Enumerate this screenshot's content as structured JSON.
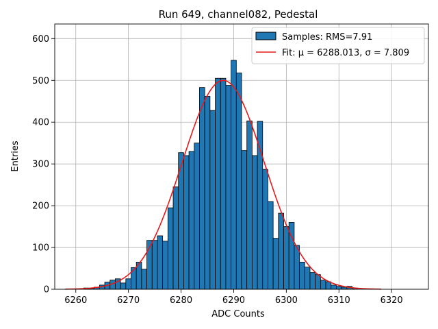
{
  "chart_data": {
    "type": "bar",
    "title": "Run 649, channel082, Pedestal",
    "xlabel": "ADC Counts",
    "ylabel": "Entries",
    "xlim": [
      6256,
      6327
    ],
    "ylim": [
      0,
      635
    ],
    "xticks": [
      6260,
      6270,
      6280,
      6290,
      6300,
      6310,
      6320
    ],
    "yticks": [
      0,
      100,
      200,
      300,
      400,
      500,
      600
    ],
    "grid": true,
    "legend_position": "top-right",
    "bin_width": 1,
    "bar_color": "#1f77b4",
    "fit_color": "#e41a1c",
    "series": [
      {
        "name": "Samples: RMS=7.91",
        "kind": "histogram",
        "x": [
          6262,
          6263,
          6264,
          6265,
          6266,
          6267,
          6268,
          6269,
          6270,
          6271,
          6272,
          6273,
          6274,
          6275,
          6276,
          6277,
          6278,
          6279,
          6280,
          6281,
          6282,
          6283,
          6284,
          6285,
          6286,
          6287,
          6288,
          6289,
          6290,
          6291,
          6292,
          6293,
          6294,
          6295,
          6296,
          6297,
          6298,
          6299,
          6300,
          6301,
          6302,
          6303,
          6304,
          6305,
          6306,
          6307,
          6308,
          6309,
          6310,
          6311,
          6312,
          6313
        ],
        "values": [
          3,
          2,
          5,
          10,
          17,
          22,
          25,
          15,
          25,
          52,
          65,
          48,
          117,
          117,
          128,
          115,
          195,
          245,
          327,
          320,
          330,
          350,
          483,
          462,
          428,
          505,
          505,
          488,
          548,
          518,
          332,
          403,
          320,
          402,
          287,
          210,
          122,
          182,
          150,
          160,
          105,
          65,
          53,
          40,
          35,
          22,
          18,
          10,
          7,
          5,
          7,
          3
        ]
      },
      {
        "name": "Fit: μ = 6288.013, σ = 7.809",
        "kind": "gaussian",
        "mu": 6288.013,
        "sigma": 7.809,
        "amplitude": 500,
        "x_range": [
          6258,
          6318
        ]
      }
    ]
  }
}
